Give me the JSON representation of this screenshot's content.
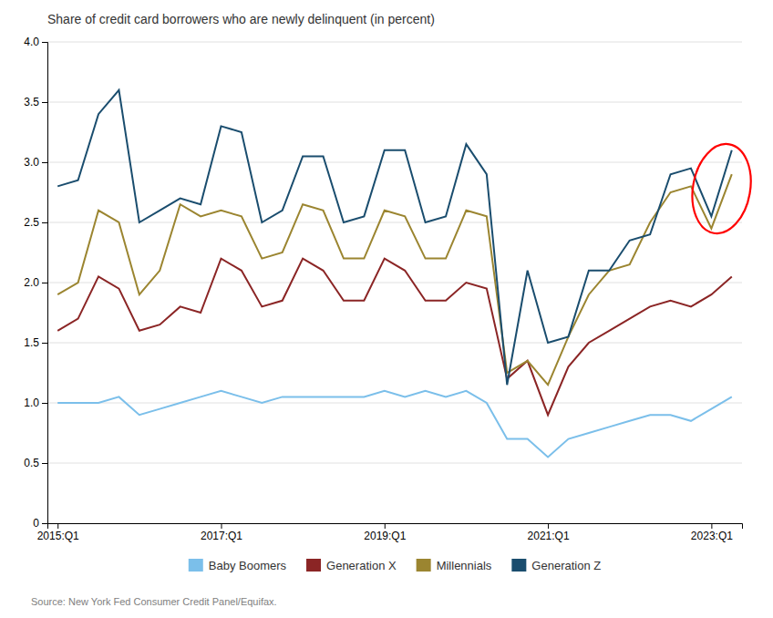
{
  "chart_data": {
    "type": "line",
    "title": "Share of credit card borrowers who are newly delinquent (in percent)",
    "source": "Source: New York Fed Consumer Credit Panel/Equifax.",
    "categories": [
      "2015:Q1",
      null,
      null,
      null,
      null,
      null,
      null,
      null,
      "2017:Q1",
      null,
      null,
      null,
      null,
      null,
      null,
      null,
      "2019:Q1",
      null,
      null,
      null,
      null,
      null,
      null,
      null,
      "2021:Q1",
      null,
      null,
      null,
      null,
      null,
      null,
      null,
      "2023:Q1",
      null
    ],
    "series": [
      {
        "name": "Baby Boomers",
        "color": "#7bbfea",
        "values": [
          1.0,
          1.0,
          1.0,
          1.05,
          0.9,
          0.95,
          1.0,
          1.05,
          1.1,
          1.05,
          1.0,
          1.05,
          1.05,
          1.05,
          1.05,
          1.05,
          1.1,
          1.05,
          1.1,
          1.05,
          1.1,
          1.0,
          0.7,
          0.7,
          0.55,
          0.7,
          0.75,
          0.8,
          0.85,
          0.9,
          0.9,
          0.85,
          0.95,
          1.05
        ]
      },
      {
        "name": "Generation X",
        "color": "#8b2525",
        "values": [
          1.6,
          1.7,
          2.05,
          1.95,
          1.6,
          1.65,
          1.8,
          1.75,
          2.2,
          2.1,
          1.8,
          1.85,
          2.2,
          2.1,
          1.85,
          1.85,
          2.2,
          2.1,
          1.85,
          1.85,
          2.0,
          1.95,
          1.2,
          1.35,
          0.9,
          1.3,
          1.5,
          1.6,
          1.7,
          1.8,
          1.85,
          1.8,
          1.9,
          2.05
        ]
      },
      {
        "name": "Millennials",
        "color": "#9b8530",
        "values": [
          1.9,
          2.0,
          2.6,
          2.5,
          1.9,
          2.1,
          2.65,
          2.55,
          2.6,
          2.55,
          2.2,
          2.25,
          2.65,
          2.6,
          2.2,
          2.2,
          2.6,
          2.55,
          2.2,
          2.2,
          2.6,
          2.55,
          1.25,
          1.35,
          1.15,
          1.55,
          1.9,
          2.1,
          2.15,
          2.5,
          2.75,
          2.8,
          2.45,
          2.9
        ]
      },
      {
        "name": "Generation Z",
        "color": "#1a4d6e",
        "values": [
          2.8,
          2.85,
          3.4,
          3.6,
          2.5,
          2.6,
          2.7,
          2.65,
          3.3,
          3.25,
          2.5,
          2.6,
          3.05,
          3.05,
          2.5,
          2.55,
          3.1,
          3.1,
          2.5,
          2.55,
          3.15,
          2.9,
          1.15,
          2.1,
          1.5,
          1.55,
          2.1,
          2.1,
          2.35,
          2.4,
          2.9,
          2.95,
          2.55,
          3.1
        ]
      }
    ],
    "ylim": [
      0,
      4.0
    ],
    "yticks": [
      0,
      0.5,
      {
        "value": 1.0,
        "label": "1.0"
      },
      1.5,
      {
        "value": 2.0,
        "label": "2.0"
      },
      2.5,
      {
        "value": 3.0,
        "label": "3.0"
      },
      3.5,
      {
        "value": 4.0,
        "label": "4.0"
      }
    ],
    "grid": true,
    "legend": "bottom",
    "annotations": [
      {
        "type": "ellipse",
        "x": 32.5,
        "y": 2.78,
        "width": 2.8,
        "height": 0.75,
        "color": "red"
      }
    ]
  }
}
